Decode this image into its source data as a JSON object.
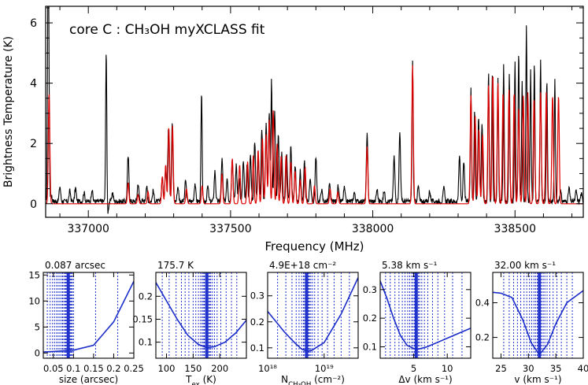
{
  "chart_data": [
    {
      "type": "line",
      "title": "core C : CH₃OH myXCLASS fit",
      "xlabel": "Frequency (MHz)",
      "ylabel": "Brightness Temperature (K)",
      "xlim": [
        336850,
        338740
      ],
      "ylim": [
        -0.45,
        6.55
      ],
      "x_ticks": [
        337000,
        337500,
        338000,
        338500
      ],
      "y_ticks": [
        0,
        2,
        4,
        6
      ],
      "series": [
        {
          "color": "#000000",
          "lines": [
            [
              336858,
              6.0
            ],
            [
              336861,
              4.5
            ],
            [
              336870,
              0.2
            ],
            [
              336900,
              0.5
            ],
            [
              336935,
              0.35
            ],
            [
              336955,
              0.45
            ],
            [
              336985,
              0.3
            ],
            [
              337013,
              0.4
            ],
            [
              337063,
              5.15
            ],
            [
              337068,
              -0.45
            ],
            [
              337085,
              0.3
            ],
            [
              337140,
              1.5
            ],
            [
              337175,
              0.6
            ],
            [
              337205,
              0.5
            ],
            [
              337228,
              0.35
            ],
            [
              337260,
              0.8
            ],
            [
              337272,
              1.2
            ],
            [
              337282,
              2.5
            ],
            [
              337295,
              2.6
            ],
            [
              337315,
              0.5
            ],
            [
              337342,
              0.7
            ],
            [
              337375,
              0.6
            ],
            [
              337398,
              3.6
            ],
            [
              337420,
              0.5
            ],
            [
              337445,
              1.0
            ],
            [
              337470,
              1.4
            ],
            [
              337488,
              0.8
            ],
            [
              337506,
              1.4
            ],
            [
              337520,
              1.2
            ],
            [
              337530,
              0.8
            ],
            [
              337545,
              1.3
            ],
            [
              337558,
              1.2
            ],
            [
              337570,
              1.5
            ],
            [
              337585,
              2.0
            ],
            [
              337598,
              1.5
            ],
            [
              337610,
              2.4
            ],
            [
              337625,
              2.6
            ],
            [
              337636,
              2.9
            ],
            [
              337644,
              4.0
            ],
            [
              337655,
              3.0
            ],
            [
              337668,
              2.2
            ],
            [
              337680,
              1.6
            ],
            [
              337697,
              1.6
            ],
            [
              337712,
              1.8
            ],
            [
              337727,
              1.2
            ],
            [
              337745,
              1.0
            ],
            [
              337760,
              1.3
            ],
            [
              337780,
              0.8
            ],
            [
              337800,
              1.5
            ],
            [
              337820,
              0.4
            ],
            [
              337848,
              0.55
            ],
            [
              337878,
              0.5
            ],
            [
              337900,
              0.45
            ],
            [
              337935,
              0.3
            ],
            [
              337980,
              2.2
            ],
            [
              338015,
              0.4
            ],
            [
              338040,
              0.35
            ],
            [
              338075,
              1.5
            ],
            [
              338095,
              2.3
            ],
            [
              338140,
              4.7
            ],
            [
              338160,
              0.5
            ],
            [
              338200,
              0.35
            ],
            [
              338250,
              0.45
            ],
            [
              338305,
              1.5
            ],
            [
              338320,
              1.3
            ],
            [
              338345,
              3.8
            ],
            [
              338358,
              3.1
            ],
            [
              338372,
              2.8
            ],
            [
              338384,
              2.6
            ],
            [
              338407,
              4.3
            ],
            [
              338420,
              4.2
            ],
            [
              338440,
              4.1
            ],
            [
              338460,
              4.5
            ],
            [
              338480,
              4.2
            ],
            [
              338500,
              4.7
            ],
            [
              338513,
              5.0
            ],
            [
              338525,
              4.0
            ],
            [
              338540,
              5.8
            ],
            [
              338555,
              4.3
            ],
            [
              338568,
              4.6
            ],
            [
              338590,
              4.7
            ],
            [
              338612,
              4.1
            ],
            [
              338640,
              4.0
            ],
            [
              338660,
              0.35
            ],
            [
              338690,
              0.45
            ],
            [
              338715,
              0.35
            ],
            [
              338733,
              0.25
            ]
          ]
        },
        {
          "color": "#dd0000",
          "lines": [
            [
              336862,
              3.7
            ],
            [
              337140,
              0.7
            ],
            [
              337175,
              0.3
            ],
            [
              337210,
              0.4
            ],
            [
              337260,
              0.9
            ],
            [
              337272,
              1.3
            ],
            [
              337283,
              2.55
            ],
            [
              337296,
              2.6
            ],
            [
              337345,
              0.5
            ],
            [
              337400,
              0.6
            ],
            [
              337470,
              1.0
            ],
            [
              337506,
              1.5
            ],
            [
              337532,
              1.3
            ],
            [
              337560,
              1.4
            ],
            [
              337580,
              1.6
            ],
            [
              337597,
              1.8
            ],
            [
              337612,
              2.2
            ],
            [
              337625,
              2.3
            ],
            [
              337636,
              2.8
            ],
            [
              337650,
              3.1
            ],
            [
              337664,
              2.0
            ],
            [
              337678,
              1.6
            ],
            [
              337695,
              1.6
            ],
            [
              337712,
              1.4
            ],
            [
              337727,
              1.1
            ],
            [
              337745,
              0.8
            ],
            [
              337762,
              1.2
            ],
            [
              337795,
              0.6
            ],
            [
              337850,
              0.5
            ],
            [
              337877,
              0.4
            ],
            [
              337980,
              1.9
            ],
            [
              338140,
              4.6
            ],
            [
              338345,
              3.6
            ],
            [
              338360,
              2.9
            ],
            [
              338373,
              2.5
            ],
            [
              338386,
              2.3
            ],
            [
              338407,
              4.0
            ],
            [
              338422,
              4.3
            ],
            [
              338440,
              4.0
            ],
            [
              338458,
              3.7
            ],
            [
              338479,
              3.8
            ],
            [
              338497,
              3.7
            ],
            [
              338513,
              3.2
            ],
            [
              338529,
              3.6
            ],
            [
              338545,
              3.7
            ],
            [
              338567,
              3.5
            ],
            [
              338590,
              3.7
            ],
            [
              338610,
              3.7
            ],
            [
              338632,
              3.6
            ],
            [
              338653,
              3.6
            ]
          ]
        }
      ]
    },
    {
      "type": "line",
      "title": "0.087 arcsec",
      "xlabel": "size (arcsec)",
      "xlim": [
        0.025,
        0.25
      ],
      "ylim": [
        -1,
        15.5
      ],
      "x_ticks": [
        0.05,
        0.1,
        0.15,
        0.2,
        0.25
      ],
      "x_tick_labels": [
        "0.05",
        "0.1",
        "0.15",
        "0.2",
        "0.25"
      ],
      "y_ticks": [
        0,
        5,
        10,
        15
      ],
      "y_tick_labels": [
        "0",
        "5",
        "10",
        "15"
      ],
      "best": 0.087,
      "series": [
        {
          "points": [
            [
              0.025,
              0.2
            ],
            [
              0.05,
              0.3
            ],
            [
              0.07,
              0.4
            ],
            [
              0.087,
              0.5
            ],
            [
              0.1,
              0.55
            ],
            [
              0.15,
              1.5
            ],
            [
              0.2,
              6.0
            ],
            [
              0.25,
              13.8
            ]
          ]
        }
      ],
      "samples": [
        0.035,
        0.042,
        0.048,
        0.053,
        0.058,
        0.062,
        0.066,
        0.07,
        0.073,
        0.076,
        0.079,
        0.081,
        0.083,
        0.085,
        0.087,
        0.089,
        0.091,
        0.093,
        0.095,
        0.097,
        0.1,
        0.155,
        0.21
      ]
    },
    {
      "type": "line",
      "title": "175.7 K",
      "xlabel": "T_ex (K)",
      "xlim": [
        80,
        250
      ],
      "ylim": [
        0.065,
        0.252
      ],
      "x_ticks": [
        100,
        150,
        200
      ],
      "x_tick_labels": [
        "100",
        "150",
        "200"
      ],
      "y_ticks": [
        0.1,
        0.15,
        0.2
      ],
      "y_tick_labels": [
        "0.1",
        "0.15",
        "0.2"
      ],
      "best": 175.7,
      "series": [
        {
          "points": [
            [
              80,
              0.23
            ],
            [
              100,
              0.19
            ],
            [
              120,
              0.15
            ],
            [
              140,
              0.115
            ],
            [
              160,
              0.095
            ],
            [
              175.7,
              0.088
            ],
            [
              190,
              0.09
            ],
            [
              210,
              0.1
            ],
            [
              230,
              0.12
            ],
            [
              250,
              0.148
            ]
          ]
        }
      ],
      "samples": [
        92,
        105,
        118,
        128,
        135,
        142,
        150,
        155,
        160,
        164,
        167,
        169,
        171,
        173,
        175,
        177,
        179,
        181,
        183,
        186,
        190,
        195,
        202,
        212,
        222,
        232
      ]
    },
    {
      "type": "line",
      "title": "4.9E+18 cm⁻²",
      "xlabel": "N_CH3OH (cm⁻²)",
      "xscale": "log",
      "xlim": [
        1e+18,
        4e+19
      ],
      "ylim": [
        0.06,
        0.39
      ],
      "x_ticks": [
        1e+18,
        1e+19
      ],
      "x_tick_labels": [
        "10¹⁸",
        "10¹⁹"
      ],
      "y_ticks": [
        0.1,
        0.2,
        0.3
      ],
      "y_tick_labels": [
        "0.1",
        "0.2",
        "0.3"
      ],
      "best": 4.9e+18,
      "series": [
        {
          "points": [
            [
              1e+18,
              0.24
            ],
            [
              2e+18,
              0.16
            ],
            [
              3e+18,
              0.12
            ],
            [
              4e+18,
              0.095
            ],
            [
              4.9e+18,
              0.088
            ],
            [
              6e+18,
              0.09
            ],
            [
              1e+19,
              0.12
            ],
            [
              2e+19,
              0.23
            ],
            [
              4e+19,
              0.37
            ]
          ]
        }
      ],
      "samples": [
        1.5e+18,
        2.1e+18,
        2.7e+18,
        3.2e+18,
        3.6e+18,
        4e+18,
        4.3e+18,
        4.5e+18,
        4.7e+18,
        4.8e+18,
        4.9e+18,
        5e+18,
        5.1e+18,
        5.3e+18,
        5.5e+18,
        5.8e+18,
        6.2e+18,
        6.8e+18,
        7.8e+18,
        9.2e+18,
        1.15e+19,
        1.5e+19,
        2e+19,
        2.8e+19
      ]
    },
    {
      "type": "line",
      "title": "5.38 km s⁻¹",
      "xlabel": "Δv (km s⁻¹)",
      "xlim": [
        0,
        13.5
      ],
      "ylim": [
        0.06,
        0.36
      ],
      "x_ticks": [
        5,
        10
      ],
      "x_tick_labels": [
        "5",
        "10"
      ],
      "y_ticks": [
        0.1,
        0.2,
        0.3
      ],
      "y_tick_labels": [
        "0.1",
        "0.2",
        "0.3"
      ],
      "best": 5.38,
      "series": [
        {
          "points": [
            [
              0,
              0.33
            ],
            [
              1,
              0.27
            ],
            [
              2,
              0.2
            ],
            [
              3,
              0.14
            ],
            [
              4,
              0.105
            ],
            [
              5.38,
              0.09
            ],
            [
              7,
              0.1
            ],
            [
              9,
              0.12
            ],
            [
              11,
              0.14
            ],
            [
              13.5,
              0.165
            ]
          ]
        }
      ],
      "samples": [
        0.8,
        1.5,
        2.2,
        2.8,
        3.3,
        3.7,
        4.1,
        4.4,
        4.7,
        4.9,
        5.1,
        5.3,
        5.4,
        5.5,
        5.7,
        5.9,
        6.2,
        6.6,
        7.1,
        7.8,
        8.6,
        9.6,
        10.8,
        12.2
      ]
    },
    {
      "type": "line",
      "title": "32.00 km s⁻¹",
      "xlabel": "v (km s⁻¹)",
      "xlim": [
        23.5,
        40
      ],
      "ylim": [
        0.08,
        0.575
      ],
      "x_ticks": [
        25,
        30,
        35,
        40
      ],
      "x_tick_labels": [
        "25",
        "30",
        "35",
        "40"
      ],
      "y_ticks": [
        0.2,
        0.4
      ],
      "y_tick_labels": [
        "0.2",
        "0.4"
      ],
      "best": 32.0,
      "series": [
        {
          "points": [
            [
              23.5,
              0.46
            ],
            [
              25,
              0.455
            ],
            [
              27,
              0.43
            ],
            [
              29,
              0.3
            ],
            [
              30.5,
              0.17
            ],
            [
              32,
              0.1
            ],
            [
              33.5,
              0.16
            ],
            [
              35,
              0.28
            ],
            [
              37,
              0.4
            ],
            [
              40,
              0.47
            ]
          ]
        }
      ],
      "samples": [
        25.5,
        26.5,
        27.3,
        28.0,
        28.6,
        29.2,
        29.7,
        30.2,
        30.6,
        31.0,
        31.3,
        31.6,
        31.8,
        32.0,
        32.2,
        32.4,
        32.7,
        33.0,
        33.4,
        33.9,
        34.5,
        35.2,
        36.0,
        37.0,
        38.0
      ]
    }
  ]
}
